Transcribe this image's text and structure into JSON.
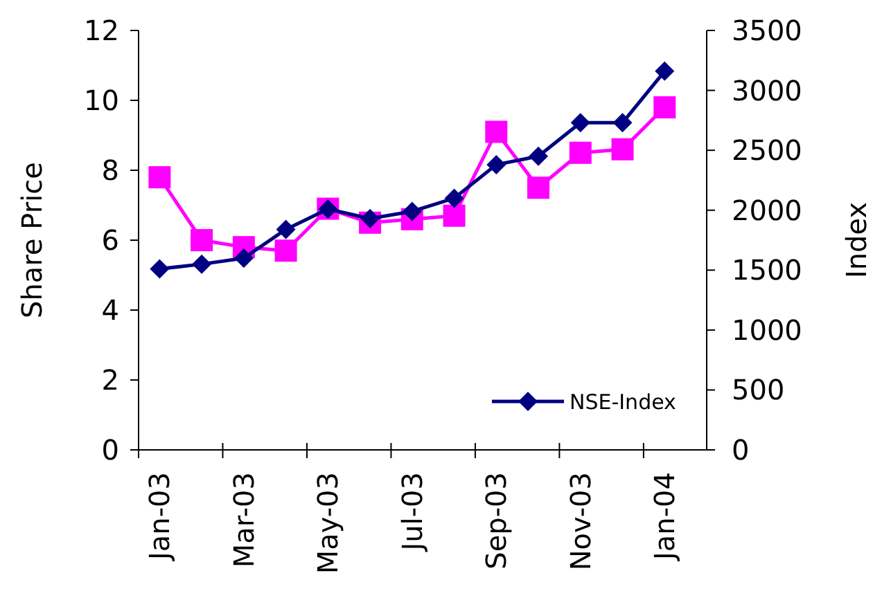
{
  "chart_data": {
    "type": "line",
    "ylabel": "Share Price",
    "y2label": "Index",
    "categories": [
      "Jan-03",
      null,
      "Mar-03",
      null,
      "May-03",
      null,
      "Jul-03",
      null,
      "Sep-03",
      null,
      "Nov-03",
      null,
      "Jan-04"
    ],
    "series": [
      {
        "color": "#ff00ff",
        "marker": "square",
        "values": [
          7.8,
          6.0,
          5.8,
          5.7,
          6.9,
          6.5,
          6.6,
          6.7,
          9.1,
          7.5,
          8.5,
          8.6,
          9.8
        ]
      },
      {
        "name": "NSE-Index",
        "color": "#000080",
        "marker": "diamond",
        "axis": "y2",
        "values": [
          1510,
          1550,
          1600,
          1840,
          2010,
          1930,
          1990,
          2100,
          2380,
          2450,
          2730,
          2730,
          3160
        ]
      }
    ],
    "ylim": [
      0,
      12
    ],
    "yticks": [
      0,
      2,
      4,
      6,
      8,
      10,
      12
    ],
    "y2lim": [
      0,
      3500
    ],
    "y2ticks": [
      0,
      500,
      1000,
      1500,
      2000,
      2500,
      3000,
      3500
    ],
    "legend": "bottom right",
    "grid": false
  }
}
